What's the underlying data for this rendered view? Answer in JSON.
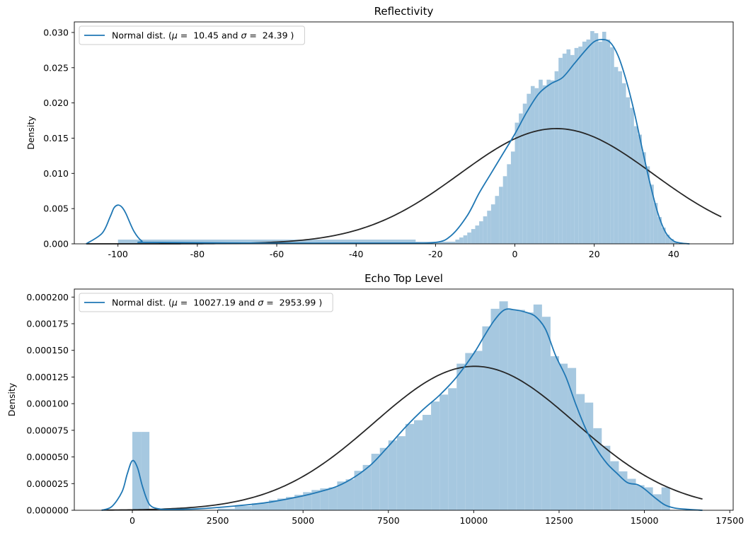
{
  "chart_data": [
    {
      "type": "histogram",
      "title": "Reflectivity",
      "xlabel": "",
      "ylabel": "Density",
      "xlim": [
        -111,
        55
      ],
      "ylim": [
        0,
        0.0315
      ],
      "xticks": [
        -100,
        -80,
        -60,
        -40,
        -20,
        0,
        20,
        40
      ],
      "yticks": [
        0.0,
        0.005,
        0.01,
        0.015,
        0.02,
        0.025,
        0.03
      ],
      "ytick_labels": [
        "0.000",
        "0.005",
        "0.010",
        "0.015",
        "0.020",
        "0.025",
        "0.030"
      ],
      "legend": {
        "placement": "upper-left",
        "label": "Normal dist. ($\\mu=$ 10.45 and $\\sigma=$ 24.39 )",
        "label_prefix": "Normal dist. (",
        "mu_sym": "μ",
        "mu_val": " =  10.45 and ",
        "sigma_sym": "σ",
        "sigma_val": " =  24.39 )"
      },
      "colors": {
        "hist": "#a6c8e0",
        "kde": "#1f77b4",
        "normal": "#262626"
      },
      "normal": {
        "mu": 10.45,
        "sigma": 24.39,
        "x_range": [
          -108,
          52
        ]
      },
      "hist": [
        {
          "x0": -100,
          "x1": -25,
          "h": 0.0006
        },
        {
          "x0": -25,
          "x1": -15,
          "h": 0.0003
        },
        {
          "x0": -15,
          "x1": -14,
          "h": 0.0006
        },
        {
          "x0": -14,
          "x1": -13,
          "h": 0.0009
        },
        {
          "x0": -13,
          "x1": -12,
          "h": 0.0012
        },
        {
          "x0": -12,
          "x1": -11,
          "h": 0.0016
        },
        {
          "x0": -11,
          "x1": -10,
          "h": 0.0021
        },
        {
          "x0": -10,
          "x1": -9,
          "h": 0.0026
        },
        {
          "x0": -9,
          "x1": -8,
          "h": 0.0032
        },
        {
          "x0": -8,
          "x1": -7,
          "h": 0.0039
        },
        {
          "x0": -7,
          "x1": -6,
          "h": 0.0047
        },
        {
          "x0": -6,
          "x1": -5,
          "h": 0.0056
        },
        {
          "x0": -5,
          "x1": -4,
          "h": 0.0068
        },
        {
          "x0": -4,
          "x1": -3,
          "h": 0.0081
        },
        {
          "x0": -3,
          "x1": -2,
          "h": 0.0096
        },
        {
          "x0": -2,
          "x1": -1,
          "h": 0.0113
        },
        {
          "x0": -1,
          "x1": 0,
          "h": 0.0131
        },
        {
          "x0": 0,
          "x1": 1,
          "h": 0.0172
        },
        {
          "x0": 1,
          "x1": 2,
          "h": 0.0185
        },
        {
          "x0": 2,
          "x1": 3,
          "h": 0.0199
        },
        {
          "x0": 3,
          "x1": 4,
          "h": 0.0213
        },
        {
          "x0": 4,
          "x1": 5,
          "h": 0.0224
        },
        {
          "x0": 5,
          "x1": 6,
          "h": 0.0221
        },
        {
          "x0": 6,
          "x1": 7,
          "h": 0.0233
        },
        {
          "x0": 7,
          "x1": 8,
          "h": 0.0225
        },
        {
          "x0": 8,
          "x1": 9,
          "h": 0.0233
        },
        {
          "x0": 9,
          "x1": 10,
          "h": 0.0232
        },
        {
          "x0": 10,
          "x1": 11,
          "h": 0.0245
        },
        {
          "x0": 11,
          "x1": 12,
          "h": 0.0264
        },
        {
          "x0": 12,
          "x1": 13,
          "h": 0.027
        },
        {
          "x0": 13,
          "x1": 14,
          "h": 0.0276
        },
        {
          "x0": 14,
          "x1": 15,
          "h": 0.0268
        },
        {
          "x0": 15,
          "x1": 16,
          "h": 0.0278
        },
        {
          "x0": 16,
          "x1": 17,
          "h": 0.028
        },
        {
          "x0": 17,
          "x1": 18,
          "h": 0.0287
        },
        {
          "x0": 18,
          "x1": 19,
          "h": 0.029
        },
        {
          "x0": 19,
          "x1": 20,
          "h": 0.0302
        },
        {
          "x0": 20,
          "x1": 21,
          "h": 0.0299
        },
        {
          "x0": 21,
          "x1": 22,
          "h": 0.0287
        },
        {
          "x0": 22,
          "x1": 23,
          "h": 0.0301
        },
        {
          "x0": 23,
          "x1": 24,
          "h": 0.029
        },
        {
          "x0": 24,
          "x1": 25,
          "h": 0.0279
        },
        {
          "x0": 25,
          "x1": 26,
          "h": 0.0251
        },
        {
          "x0": 26,
          "x1": 27,
          "h": 0.0245
        },
        {
          "x0": 27,
          "x1": 28,
          "h": 0.0228
        },
        {
          "x0": 28,
          "x1": 29,
          "h": 0.0208
        },
        {
          "x0": 29,
          "x1": 30,
          "h": 0.0193
        },
        {
          "x0": 30,
          "x1": 31,
          "h": 0.0167
        },
        {
          "x0": 31,
          "x1": 32,
          "h": 0.0155
        },
        {
          "x0": 32,
          "x1": 33,
          "h": 0.013
        },
        {
          "x0": 33,
          "x1": 34,
          "h": 0.011
        },
        {
          "x0": 34,
          "x1": 35,
          "h": 0.0084
        },
        {
          "x0": 35,
          "x1": 36,
          "h": 0.0058
        },
        {
          "x0": 36,
          "x1": 37,
          "h": 0.0038
        },
        {
          "x0": 37,
          "x1": 38,
          "h": 0.0023
        },
        {
          "x0": 38,
          "x1": 39,
          "h": 0.0013
        },
        {
          "x0": 39,
          "x1": 40,
          "h": 0.0007
        },
        {
          "x0": 40,
          "x1": 41,
          "h": 0.0003
        }
      ],
      "kde": {
        "x": [
          -108,
          -104,
          -102,
          -101,
          -100,
          -99,
          -98,
          -96,
          -94,
          -92,
          -60,
          -30,
          -20,
          -16,
          -12,
          -9,
          -6,
          -3,
          0,
          3,
          6,
          9,
          12,
          15,
          18,
          20,
          22,
          24,
          26,
          28,
          30,
          32,
          34,
          36,
          38,
          40,
          42,
          44
        ],
        "y": [
          0.0,
          0.0015,
          0.0038,
          0.0051,
          0.0055,
          0.0052,
          0.0043,
          0.0018,
          0.0004,
          0.0002,
          0.0001,
          0.0001,
          0.0002,
          0.0012,
          0.004,
          0.0072,
          0.01,
          0.0128,
          0.0156,
          0.0187,
          0.0213,
          0.0227,
          0.0236,
          0.0256,
          0.0276,
          0.0287,
          0.029,
          0.0286,
          0.0267,
          0.0233,
          0.0189,
          0.0137,
          0.0087,
          0.0044,
          0.0016,
          0.0004,
          0.0001,
          0.0
        ]
      }
    },
    {
      "type": "histogram",
      "title": "Echo Top Level",
      "xlabel": "",
      "ylabel": "Density",
      "xlim": [
        -1700,
        17600
      ],
      "ylim": [
        0,
        0.0002075
      ],
      "xticks": [
        0,
        2500,
        5000,
        7500,
        10000,
        12500,
        15000,
        17500
      ],
      "yticks": [
        0.0,
        2.5e-05,
        5e-05,
        7.5e-05,
        0.0001,
        0.000125,
        0.00015,
        0.000175,
        0.0002
      ],
      "ytick_labels": [
        "0.000000",
        "0.000025",
        "0.000050",
        "0.000075",
        "0.000100",
        "0.000125",
        "0.000150",
        "0.000175",
        "0.000200"
      ],
      "legend": {
        "placement": "upper-left",
        "label": "Normal dist. ($\\mu=$ 10027.19 and $\\sigma=$ 2953.99 )",
        "label_prefix": "Normal dist. (",
        "mu_sym": "μ",
        "mu_val": " =  10027.19 and ",
        "sigma_sym": "σ",
        "sigma_val": " =  2953.99 )"
      },
      "colors": {
        "hist": "#a6c8e0",
        "kde": "#1f77b4",
        "normal": "#262626"
      },
      "normal": {
        "mu": 10027.19,
        "sigma": 2953.99,
        "x_range": [
          -900,
          16700
        ]
      },
      "hist": [
        {
          "x0": 0,
          "x1": 250,
          "h": 7.35e-05
        },
        {
          "x0": 250,
          "x1": 500,
          "h": 7.35e-05
        },
        {
          "x0": 2500,
          "x1": 3000,
          "h": 1.5e-06
        },
        {
          "x0": 3000,
          "x1": 3500,
          "h": 4e-06
        },
        {
          "x0": 3500,
          "x1": 4000,
          "h": 6.5e-06
        },
        {
          "x0": 4000,
          "x1": 4250,
          "h": 9.5e-06
        },
        {
          "x0": 4250,
          "x1": 4500,
          "h": 1.1e-05
        },
        {
          "x0": 4500,
          "x1": 4750,
          "h": 1.25e-05
        },
        {
          "x0": 4750,
          "x1": 5000,
          "h": 1.45e-05
        },
        {
          "x0": 5000,
          "x1": 5250,
          "h": 1.7e-05
        },
        {
          "x0": 5250,
          "x1": 5500,
          "h": 1.9e-05
        },
        {
          "x0": 5500,
          "x1": 5750,
          "h": 2.05e-05
        },
        {
          "x0": 5750,
          "x1": 6000,
          "h": 2.15e-05
        },
        {
          "x0": 6000,
          "x1": 6250,
          "h": 2.7e-05
        },
        {
          "x0": 6250,
          "x1": 6500,
          "h": 2.9e-05
        },
        {
          "x0": 6500,
          "x1": 6750,
          "h": 3.7e-05
        },
        {
          "x0": 6750,
          "x1": 7000,
          "h": 4.25e-05
        },
        {
          "x0": 7000,
          "x1": 7250,
          "h": 5.3e-05
        },
        {
          "x0": 7250,
          "x1": 7500,
          "h": 5.85e-05
        },
        {
          "x0": 7500,
          "x1": 7750,
          "h": 6.55e-05
        },
        {
          "x0": 7750,
          "x1": 8000,
          "h": 6.95e-05
        },
        {
          "x0": 8000,
          "x1": 8250,
          "h": 8.1e-05
        },
        {
          "x0": 8250,
          "x1": 8500,
          "h": 8.45e-05
        },
        {
          "x0": 8500,
          "x1": 8750,
          "h": 8.95e-05
        },
        {
          "x0": 8750,
          "x1": 9000,
          "h": 0.000102
        },
        {
          "x0": 9000,
          "x1": 9250,
          "h": 0.0001085
        },
        {
          "x0": 9250,
          "x1": 9500,
          "h": 0.0001145
        },
        {
          "x0": 9500,
          "x1": 9750,
          "h": 0.0001375
        },
        {
          "x0": 9750,
          "x1": 10000,
          "h": 0.0001475
        },
        {
          "x0": 10000,
          "x1": 10250,
          "h": 0.0001495
        },
        {
          "x0": 10250,
          "x1": 10500,
          "h": 0.0001725
        },
        {
          "x0": 10500,
          "x1": 10750,
          "h": 0.000189
        },
        {
          "x0": 10750,
          "x1": 11000,
          "h": 0.000196
        },
        {
          "x0": 11000,
          "x1": 11250,
          "h": 0.000188
        },
        {
          "x0": 11250,
          "x1": 11500,
          "h": 0.000188
        },
        {
          "x0": 11500,
          "x1": 11750,
          "h": 0.0001855
        },
        {
          "x0": 11750,
          "x1": 12000,
          "h": 0.000193
        },
        {
          "x0": 12000,
          "x1": 12250,
          "h": 0.0001815
        },
        {
          "x0": 12250,
          "x1": 12500,
          "h": 0.0001445
        },
        {
          "x0": 12500,
          "x1": 12750,
          "h": 0.0001375
        },
        {
          "x0": 12750,
          "x1": 13000,
          "h": 0.0001335
        },
        {
          "x0": 13000,
          "x1": 13250,
          "h": 0.000109
        },
        {
          "x0": 13250,
          "x1": 13500,
          "h": 0.000101
        },
        {
          "x0": 13500,
          "x1": 13750,
          "h": 7.7e-05
        },
        {
          "x0": 13750,
          "x1": 14000,
          "h": 6.05e-05
        },
        {
          "x0": 14000,
          "x1": 14250,
          "h": 4.6e-05
        },
        {
          "x0": 14250,
          "x1": 14500,
          "h": 3.65e-05
        },
        {
          "x0": 14500,
          "x1": 14750,
          "h": 2.95e-05
        },
        {
          "x0": 14750,
          "x1": 15000,
          "h": 2.35e-05
        },
        {
          "x0": 15000,
          "x1": 15250,
          "h": 2.15e-05
        },
        {
          "x0": 15250,
          "x1": 15500,
          "h": 1.5e-05
        },
        {
          "x0": 15500,
          "x1": 15750,
          "h": 2.15e-05
        }
      ],
      "kde": {
        "x": [
          -900,
          -600,
          -300,
          -150,
          0,
          150,
          300,
          500,
          800,
          1200,
          2000,
          3000,
          4000,
          5000,
          5500,
          6000,
          6500,
          7000,
          7500,
          8000,
          8500,
          9000,
          9500,
          10000,
          10300,
          10600,
          10900,
          11200,
          11500,
          11800,
          12100,
          12400,
          12700,
          13000,
          13300,
          13600,
          13900,
          14200,
          14500,
          14800,
          15000,
          15300,
          15600,
          15900,
          16300,
          16700
        ],
        "y": [
          0.0,
          3.5e-06,
          1.75e-05,
          3.4e-05,
          4.65e-05,
          4e-05,
          2.2e-05,
          5.5e-06,
          1.2e-06,
          8e-07,
          1.5e-06,
          4e-06,
          7.5e-06,
          1.35e-05,
          1.75e-05,
          2.25e-05,
          3.1e-05,
          4.3e-05,
          6e-05,
          7.8e-05,
          9.4e-05,
          0.000108,
          0.000125,
          0.000147,
          0.000163,
          0.000178,
          0.000188,
          0.000188,
          0.000186,
          0.000182,
          0.00017,
          0.000145,
          0.000125,
          9.85e-05,
          7.5e-05,
          5.75e-05,
          4.4e-05,
          3.45e-05,
          2.6e-05,
          2.4e-05,
          2e-05,
          1.2e-05,
          5e-06,
          2e-06,
          8e-07,
          0.0
        ]
      }
    }
  ]
}
